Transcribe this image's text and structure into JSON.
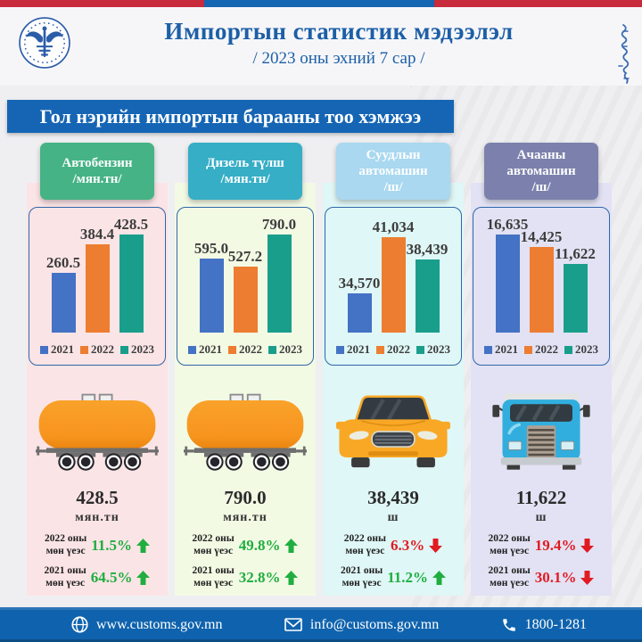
{
  "colors": {
    "strip_red": "#C82B3C",
    "strip_blue": "#1566B2",
    "banner_bg": "#1565B4",
    "title_blue": "#1C5FA6",
    "footer_bg": "#0F63AE",
    "stat_up": "#1FAE3F",
    "stat_down": "#E11B22"
  },
  "header": {
    "title": "Импортын статистик мэдээлэл",
    "subtitle": "/ 2023 оны эхний  7 сар /"
  },
  "banner": {
    "text": "Гол нэрийн импортын барааны тоо хэмжээ"
  },
  "bar_colors": [
    "#4472C4",
    "#ED7D31",
    "#1A9E8C"
  ],
  "legend_years": [
    "2021",
    "2022",
    "2023"
  ],
  "chart_data": [
    {
      "type": "bar",
      "title": "Автобензин /мян.тн/",
      "categories": [
        "2021",
        "2022",
        "2023"
      ],
      "values": [
        260.5,
        384.4,
        428.5
      ],
      "labels": [
        "260.5",
        "384.4",
        "428.5"
      ],
      "ylim": [
        0,
        450
      ],
      "ylabel": "мян.тн",
      "grid": false,
      "legend_position": "bottom"
    },
    {
      "type": "bar",
      "title": "Дизель түлш /мян.тн/",
      "categories": [
        "2021",
        "2022",
        "2023"
      ],
      "values": [
        595.0,
        527.2,
        790.0
      ],
      "labels": [
        "595.0",
        "527.2",
        "790.0"
      ],
      "ylim": [
        0,
        830
      ],
      "ylabel": "мян.тн",
      "grid": false,
      "legend_position": "bottom"
    },
    {
      "type": "bar",
      "title": "Суудлын автомашин /ш/",
      "categories": [
        "2021",
        "2022",
        "2023"
      ],
      "values": [
        34570,
        41034,
        38439
      ],
      "labels": [
        "34,570",
        "41,034",
        "38,439"
      ],
      "ylim": [
        30000,
        42000
      ],
      "ylabel": "ш",
      "grid": false,
      "legend_position": "bottom"
    },
    {
      "type": "bar",
      "title": "Ачааны автомашин /ш/",
      "categories": [
        "2021",
        "2022",
        "2023"
      ],
      "values": [
        16635,
        14425,
        11622
      ],
      "labels": [
        "16,635",
        "14,425",
        "11,622"
      ],
      "ylim": [
        0,
        17500
      ],
      "ylabel": "ш",
      "grid": false,
      "legend_position": "bottom"
    }
  ],
  "columns": [
    {
      "name": "Автобензин",
      "unit": "/мян.тн/",
      "header_color": "#45B385",
      "bg": "#FBE4E6",
      "icon": "rail-tank-wagon",
      "total_value": "428.5",
      "total_unit": "мян.тн",
      "stats": [
        {
          "label1": "2022 оны",
          "label2": "мөн үеэс",
          "value": "11.5%",
          "dir": "up"
        },
        {
          "label1": "2021 оны",
          "label2": "мөн үеэс",
          "value": "64.5%",
          "dir": "up"
        }
      ]
    },
    {
      "name": "Дизель түлш",
      "unit": "/мян.тн/",
      "header_color": "#36AEC6",
      "bg": "#F2FAE4",
      "icon": "rail-tank-wagon",
      "total_value": "790.0",
      "total_unit": "мян.тн",
      "stats": [
        {
          "label1": "2022 оны",
          "label2": "мөн үеэс",
          "value": "49.8%",
          "dir": "up"
        },
        {
          "label1": "2021 оны",
          "label2": "мөн үеэс",
          "value": "32.8%",
          "dir": "up"
        }
      ]
    },
    {
      "name": "Суудлын автомашин",
      "unit": "/ш/",
      "header_color": "#A9D8F0",
      "bg": "#DFF7F6",
      "icon": "passenger-car",
      "total_value": "38,439",
      "total_unit": "ш",
      "stats": [
        {
          "label1": "2022 оны",
          "label2": "мөн үеэс",
          "value": "6.3%",
          "dir": "down"
        },
        {
          "label1": "2021 оны",
          "label2": "мөн үеэс",
          "value": "11.2%",
          "dir": "up"
        }
      ]
    },
    {
      "name": "Ачааны автомашин",
      "unit": "/ш/",
      "header_color": "#7B81AC",
      "bg": "#E2E2F4",
      "icon": "truck",
      "total_value": "11,622",
      "total_unit": "ш",
      "stats": [
        {
          "label1": "2022 оны",
          "label2": "мөн үеэс",
          "value": "19.4%",
          "dir": "down"
        },
        {
          "label1": "2021 оны",
          "label2": "мөн үеэс",
          "value": "30.1%",
          "dir": "down"
        }
      ]
    }
  ],
  "footer": {
    "website": "www.customs.gov.mn",
    "email": "info@customs.gov.mn",
    "phone": "1800-1281"
  }
}
